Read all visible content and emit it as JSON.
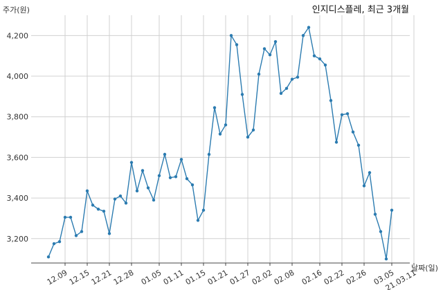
{
  "chart_data": {
    "type": "line",
    "title": "인지디스플레, 최근 3개월",
    "ylabel": "주가(원)",
    "xlabel": "날짜(일)",
    "ylim": [
      3080,
      4300
    ],
    "yticks": [
      3200,
      3400,
      3600,
      3800,
      4000,
      4200
    ],
    "ytick_labels": [
      "3,200",
      "3,400",
      "3,600",
      "3,800",
      "4,000",
      "4,200"
    ],
    "xtick_labels": [
      "12.09",
      "12.15",
      "12.21",
      "12.28",
      "01.05",
      "01.11",
      "01.15",
      "01.21",
      "01.27",
      "02.02",
      "02.08",
      "02.16",
      "02.22",
      "02.26",
      "03.05",
      "21.03.11"
    ],
    "xtick_indices": [
      3,
      7,
      11,
      15,
      20,
      24,
      28,
      32,
      36,
      40,
      44,
      49,
      53,
      57,
      62,
      66
    ],
    "grid": true,
    "color": "#2b7bb0",
    "series": [
      {
        "values": [
          3110,
          3175,
          3185,
          3305,
          3305,
          3215,
          3235,
          3435,
          3365,
          3345,
          3335,
          3225,
          3395,
          3410,
          3375,
          3575,
          3435,
          3535,
          3450,
          3390,
          3510,
          3615,
          3500,
          3505,
          3590,
          3495,
          3465,
          3290,
          3340,
          3615,
          3845,
          3715,
          3760,
          4200,
          4155,
          3910,
          3700,
          3735,
          4010,
          4135,
          4105,
          4170,
          3915,
          3940,
          3985,
          3995,
          4200,
          4240,
          4100,
          4085,
          4055,
          3880,
          3675,
          3810,
          3815,
          3725,
          3660,
          3460,
          3525,
          3320,
          3235,
          3100,
          3340
        ]
      }
    ]
  }
}
